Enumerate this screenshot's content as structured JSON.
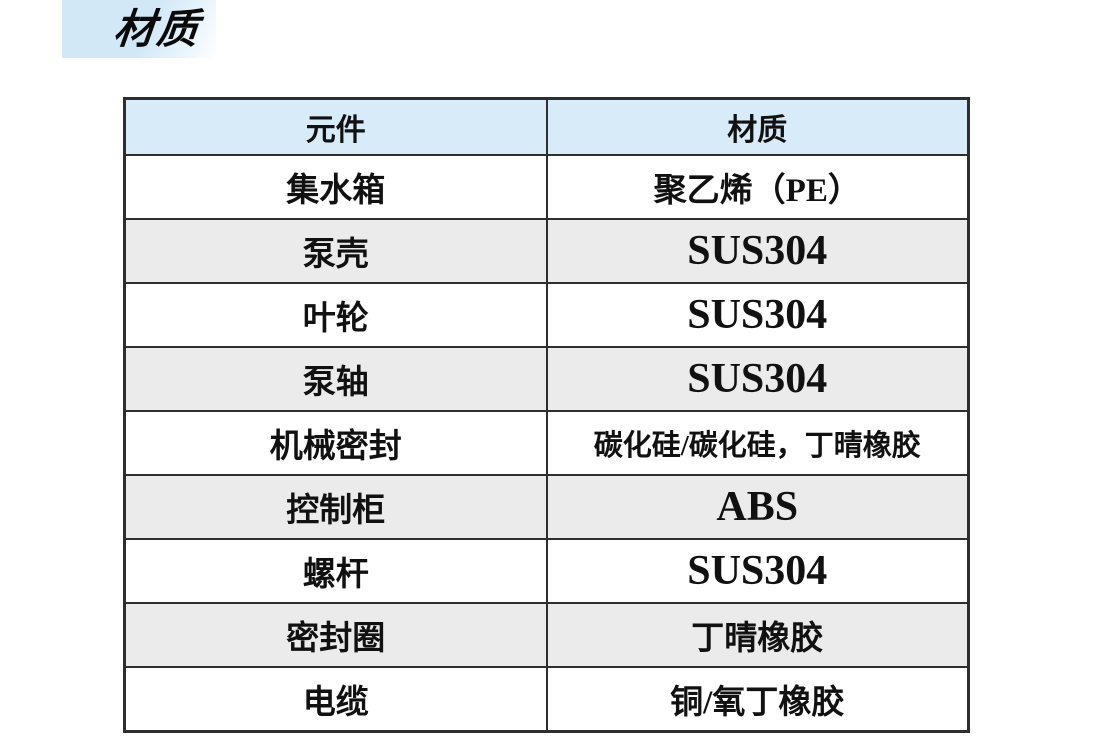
{
  "title": "材质",
  "table": {
    "headers": [
      "元件",
      "材质"
    ],
    "rows": [
      {
        "component": "集水箱",
        "material": "聚乙烯（PE）"
      },
      {
        "component": "泵壳",
        "material": "SUS304"
      },
      {
        "component": "叶轮",
        "material": "SUS304"
      },
      {
        "component": "泵轴",
        "material": "SUS304"
      },
      {
        "component": "机械密封",
        "material": "碳化硅/碳化硅，丁晴橡胶"
      },
      {
        "component": "控制柜",
        "material": "ABS"
      },
      {
        "component": "螺杆",
        "material": "SUS304"
      },
      {
        "component": "密封圈",
        "material": "丁晴橡胶"
      },
      {
        "component": "电缆",
        "material": "铜/氧丁橡胶"
      }
    ]
  },
  "colors": {
    "title_bg": "#d2e8f7",
    "header_bg": "#d8ebf8",
    "row_alt_bg": "#ebebeb",
    "border": "#2e2e2e"
  }
}
